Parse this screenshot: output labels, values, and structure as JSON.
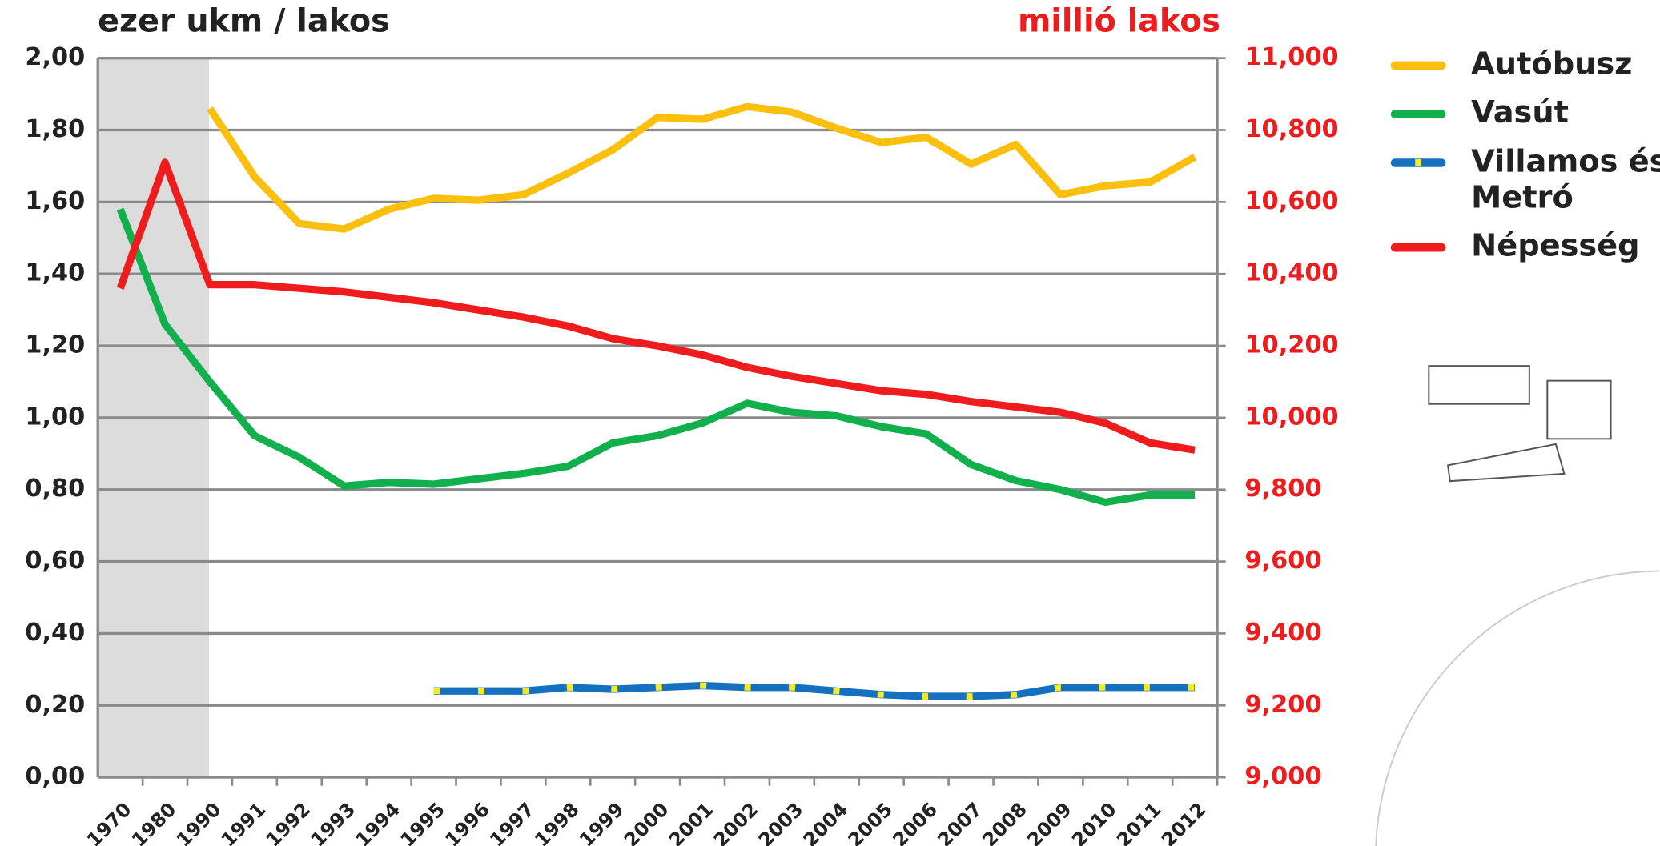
{
  "chart_data": {
    "type": "line",
    "y_label": "ezer ukm / lakos",
    "y2_label": "millió lakos",
    "categories": [
      "1970",
      "1980",
      "1990",
      "1991",
      "1992",
      "1993",
      "1994",
      "1995",
      "1996",
      "1997",
      "1998",
      "1999",
      "2000",
      "2001",
      "2002",
      "2003",
      "2004",
      "2005",
      "2006",
      "2007",
      "2008",
      "2009",
      "2010",
      "2011",
      "2012"
    ],
    "series": [
      {
        "name": "Autóbusz",
        "color": "#fbbf0e",
        "values": [
          null,
          null,
          1.86,
          1.67,
          1.54,
          1.525,
          1.58,
          1.61,
          1.605,
          1.62,
          1.68,
          1.745,
          1.835,
          1.83,
          1.865,
          1.85,
          1.805,
          1.765,
          1.78,
          1.705,
          1.76,
          1.62,
          1.645,
          1.655,
          1.725
        ]
      },
      {
        "name": "Vasút",
        "color": "#12b04c",
        "values": [
          1.58,
          1.26,
          1.1,
          0.95,
          0.89,
          0.81,
          0.82,
          0.815,
          0.83,
          0.845,
          0.865,
          0.93,
          0.95,
          0.985,
          1.04,
          1.015,
          1.005,
          0.975,
          0.955,
          0.87,
          0.825,
          0.8,
          0.765,
          0.785,
          0.785
        ]
      },
      {
        "name": "Villamos és Metró",
        "color": "#1570c0",
        "dash_color": "#f2ea2a",
        "values": [
          null,
          null,
          null,
          null,
          null,
          null,
          null,
          0.24,
          0.24,
          0.24,
          0.25,
          0.245,
          0.25,
          0.255,
          0.25,
          0.25,
          0.24,
          0.23,
          0.225,
          0.225,
          0.23,
          0.25,
          0.25,
          0.25,
          0.25
        ]
      },
      {
        "name": "Népesség",
        "color": "#ee1c1c",
        "axis": "y2",
        "values": [
          10.36,
          10.71,
          10.37,
          10.37,
          10.36,
          10.35,
          10.335,
          10.32,
          10.3,
          10.28,
          10.255,
          10.22,
          10.2,
          10.175,
          10.14,
          10.115,
          10.095,
          10.075,
          10.065,
          10.045,
          10.03,
          10.015,
          9.985,
          9.93,
          9.91
        ]
      }
    ],
    "ylim": [
      0,
      2
    ],
    "yticks": [
      {
        "value": 0,
        "label": "0,00"
      },
      {
        "value": 0.2,
        "label": "0,20"
      },
      {
        "value": 0.4,
        "label": "0,40"
      },
      {
        "value": 0.6,
        "label": "0,60"
      },
      {
        "value": 0.8,
        "label": "0,80"
      },
      {
        "value": 1.0,
        "label": "1,00"
      },
      {
        "value": 1.2,
        "label": "1,20"
      },
      {
        "value": 1.4,
        "label": "1,40"
      },
      {
        "value": 1.6,
        "label": "1,60"
      },
      {
        "value": 1.8,
        "label": "1,80"
      },
      {
        "value": 2.0,
        "label": "2,00"
      }
    ],
    "y2lim": [
      9,
      11
    ],
    "y2ticks": [
      {
        "value": 9,
        "label": "9,000"
      },
      {
        "value": 9.2,
        "label": "9,200"
      },
      {
        "value": 9.4,
        "label": "9,400"
      },
      {
        "value": 9.6,
        "label": "9,600"
      },
      {
        "value": 9.8,
        "label": "9,800"
      },
      {
        "value": 10,
        "label": "10,000"
      },
      {
        "value": 10.2,
        "label": "10,200"
      },
      {
        "value": 10.4,
        "label": "10,400"
      },
      {
        "value": 10.6,
        "label": "10,600"
      },
      {
        "value": 10.8,
        "label": "10,800"
      },
      {
        "value": 11,
        "label": "11,000"
      }
    ],
    "y2_color": "#ee1c1c",
    "grid": true,
    "legend": "right"
  }
}
